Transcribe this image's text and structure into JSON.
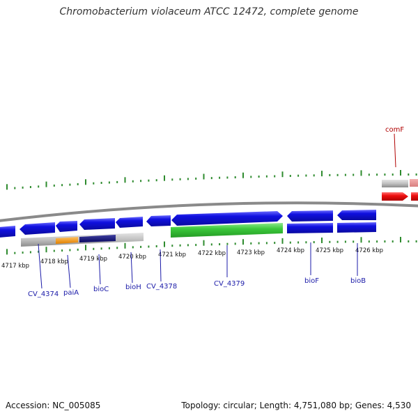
{
  "title": "Chromobacterium violaceum ATCC 12472, complete genome",
  "footer": {
    "accession": "Accession: NC_005085",
    "topology": "Topology: circular; Length: 4,751,080 bp; Genes: 4,530"
  },
  "colors": {
    "backbone": "#8a8a8a",
    "tick": "#2e8b2e",
    "gene_blue": "#1010e0",
    "gene_green": "#3cc83c",
    "gene_red": "#ee1010",
    "gene_grey": "#b8b8b8",
    "gene_orange": "#f08c00",
    "gene_navy": "#10107a",
    "label_blue": "#1a1aa8",
    "label_red": "#b00000"
  },
  "scale": {
    "unit": "kbp",
    "labels": [
      "4717 kbp",
      "4718 kbp",
      "4719 kbp",
      "4720 kbp",
      "4721 kbp",
      "4722 kbp",
      "4723 kbp",
      "4724 kbp",
      "4725 kbp",
      "4726 kbp"
    ]
  },
  "gene_labels": [
    {
      "name": "CV_4374",
      "color": "blue"
    },
    {
      "name": "paiA",
      "color": "blue"
    },
    {
      "name": "bioC",
      "color": "blue"
    },
    {
      "name": "bioH",
      "color": "blue"
    },
    {
      "name": "CV_4378",
      "color": "blue"
    },
    {
      "name": "CV_4379",
      "color": "blue"
    },
    {
      "name": "bioF",
      "color": "blue"
    },
    {
      "name": "bioB",
      "color": "blue"
    },
    {
      "name": "comF",
      "color": "red"
    }
  ]
}
